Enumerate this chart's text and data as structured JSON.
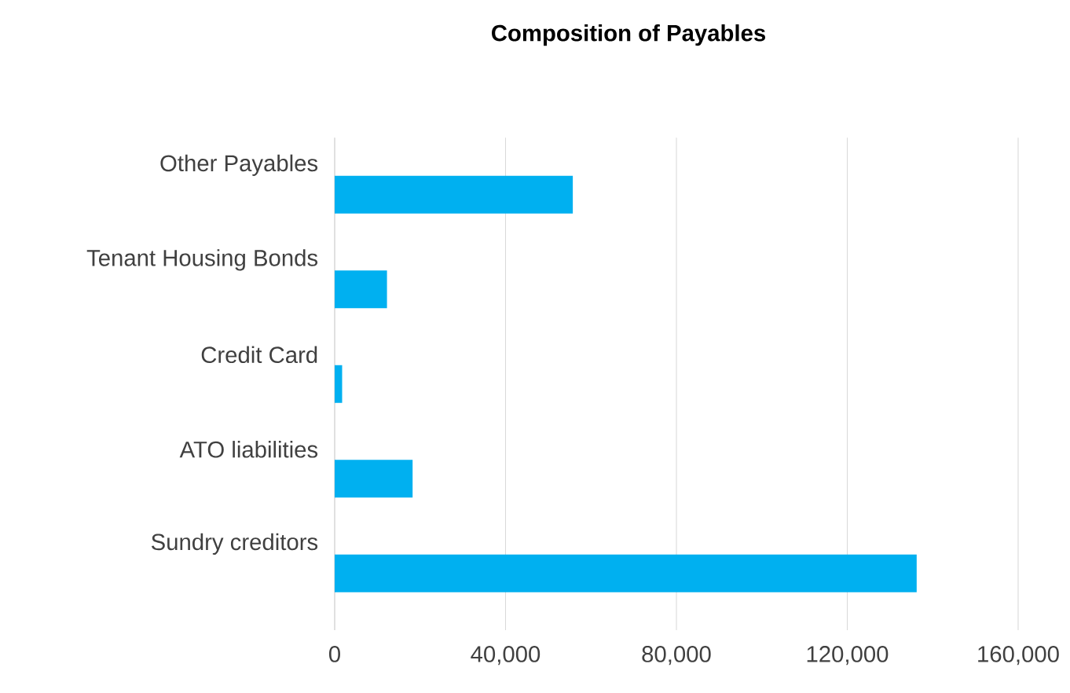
{
  "chart_data": {
    "type": "bar",
    "orientation": "horizontal",
    "title": "Composition of Payables",
    "categories": [
      "Other Payables",
      "Tenant Housing Bonds",
      "Credit Card",
      "ATO liabilities",
      "Sundry creditors"
    ],
    "values": [
      55500,
      12000,
      1500,
      18000,
      136000
    ],
    "color": "#00b0f0",
    "xlim": [
      0,
      160000
    ],
    "xticks": [
      {
        "value": 0,
        "label": "0"
      },
      {
        "value": 40000,
        "label": "40,000"
      },
      {
        "value": 80000,
        "label": "80,000"
      },
      {
        "value": 120000,
        "label": "120,000"
      },
      {
        "value": 160000,
        "label": "160,000"
      }
    ],
    "grid": "x"
  }
}
